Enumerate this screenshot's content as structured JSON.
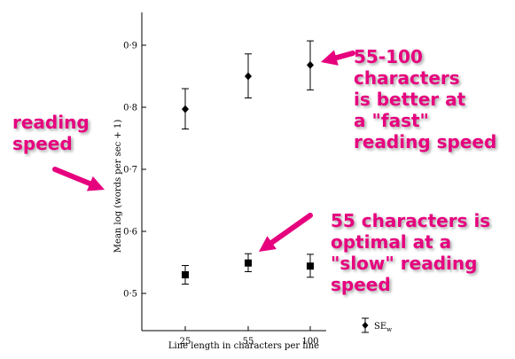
{
  "chart_data": {
    "type": "scatter",
    "title": "",
    "xlabel": "Line length in characters per line",
    "ylabel": "Mean log (words per sec + 1)",
    "x_ticks": [
      "25",
      "55",
      "100"
    ],
    "y_ticks": [
      "0·5",
      "0·6",
      "0·7",
      "0·8",
      "0·9"
    ],
    "ylim": [
      0.46,
      0.95
    ],
    "series": [
      {
        "marker": "diamond",
        "points": [
          {
            "x": "25",
            "y": 0.797,
            "err_low": 0.765,
            "err_high": 0.83
          },
          {
            "x": "55",
            "y": 0.85,
            "err_low": 0.815,
            "err_high": 0.886
          },
          {
            "x": "100",
            "y": 0.868,
            "err_low": 0.828,
            "err_high": 0.907
          }
        ]
      },
      {
        "marker": "square",
        "points": [
          {
            "x": "25",
            "y": 0.53,
            "err_low": 0.515,
            "err_high": 0.545
          },
          {
            "x": "55",
            "y": 0.549,
            "err_low": 0.535,
            "err_high": 0.564
          },
          {
            "x": "100",
            "y": 0.544,
            "err_low": 0.526,
            "err_high": 0.563
          }
        ]
      }
    ],
    "legend": {
      "label_main": "SE",
      "label_sub": "w",
      "placement": "bottom-right"
    },
    "annotations": [
      {
        "id": "left",
        "text": "reading\nspeed"
      },
      {
        "id": "top",
        "text": "55-100\ncharacters\nis better at\na \"fast\"\nreading speed"
      },
      {
        "id": "bottom",
        "text": "55 characters is\noptimal at a\n\"slow\" reading\nspeed"
      }
    ],
    "annotation_color": "#e6007e"
  }
}
